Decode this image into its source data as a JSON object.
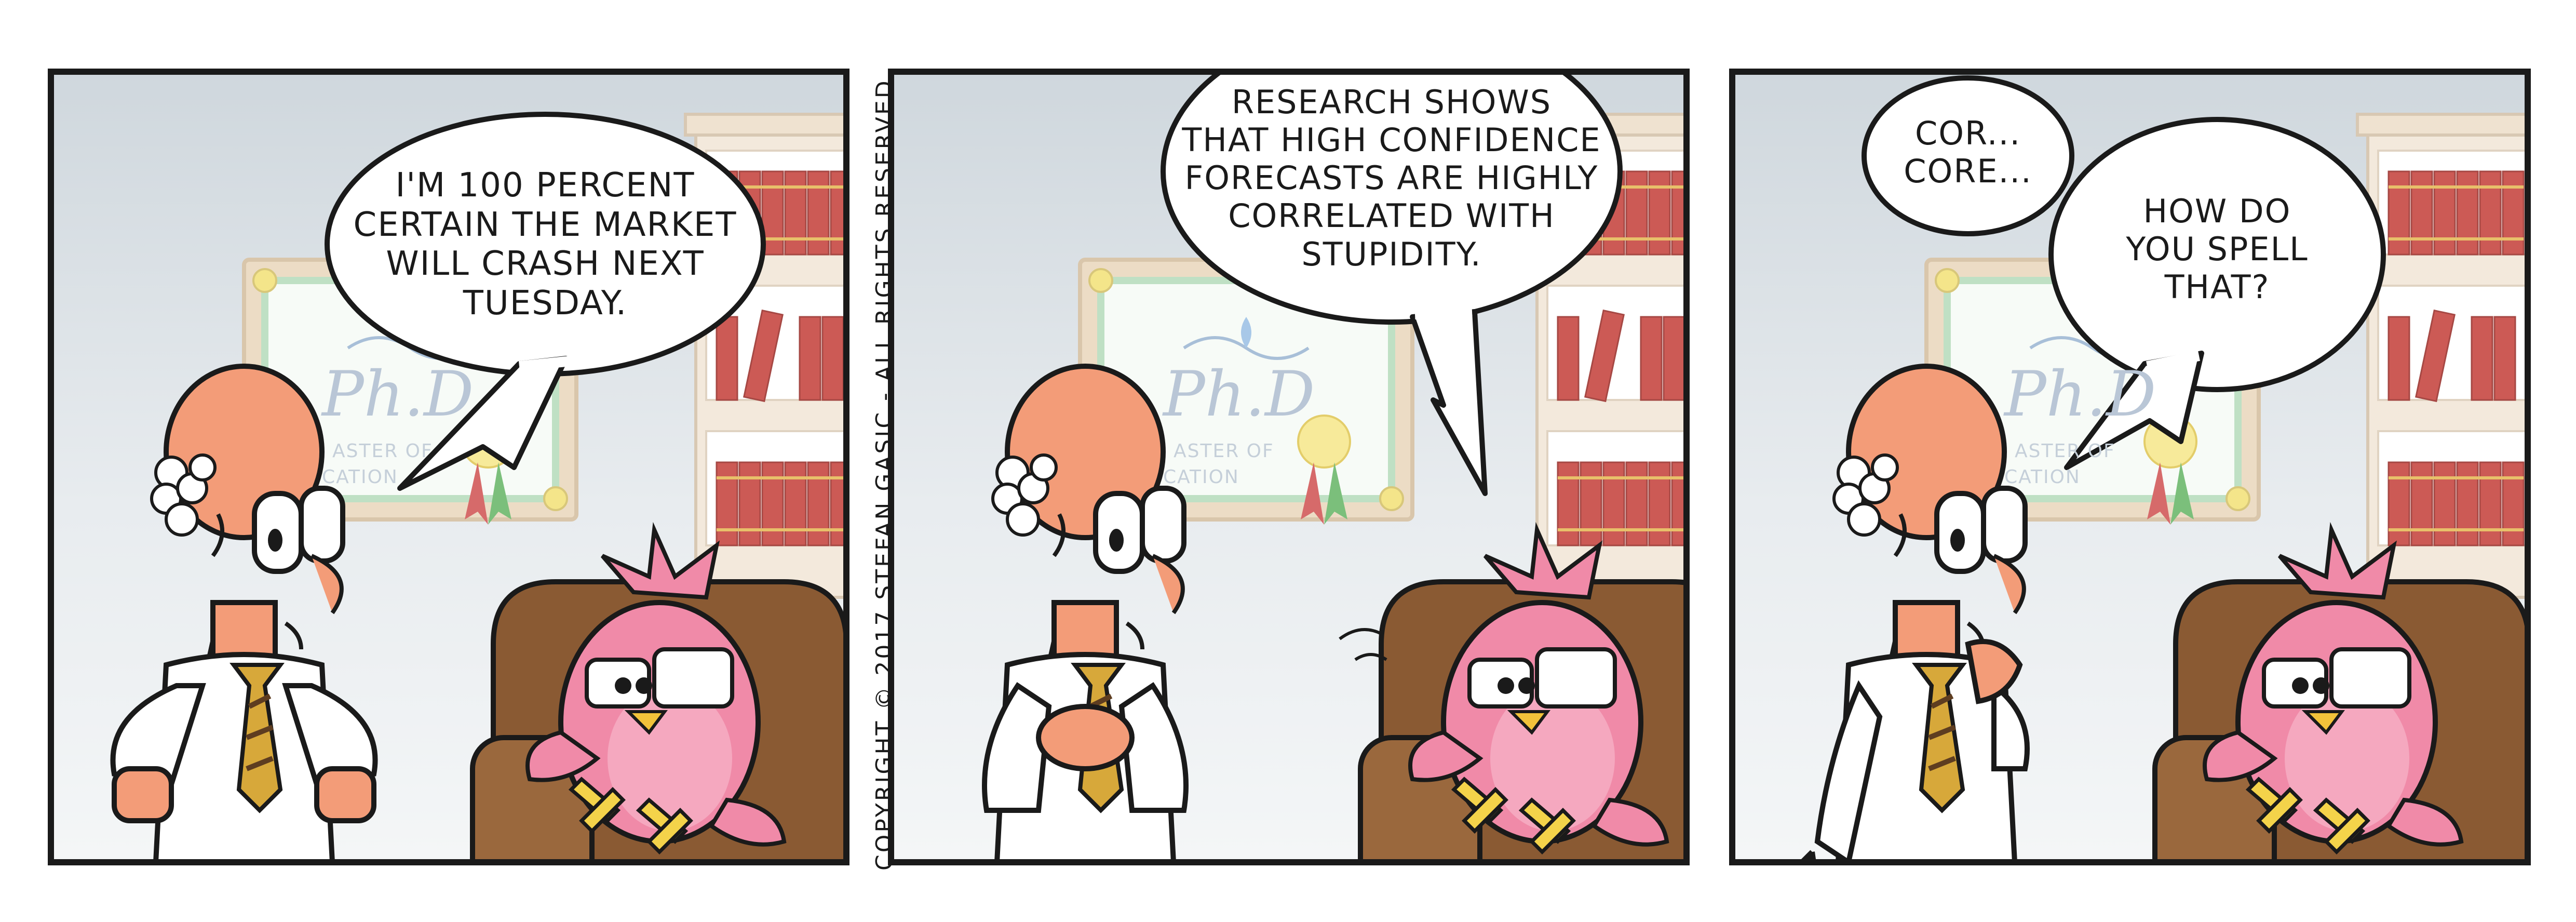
{
  "panels": [
    {
      "bubbles": [
        {
          "text": "I'M 100 PERCENT\nCERTAIN THE MARKET\nWILL CRASH NEXT\nTUESDAY."
        }
      ]
    },
    {
      "bubbles": [
        {
          "text": "RESEARCH SHOWS\nTHAT HIGH CONFIDENCE\nFORECASTS ARE HIGHLY\nCORRELATED WITH\nSTUPIDITY."
        }
      ]
    },
    {
      "bubbles": [
        {
          "text": "COR...\nCORE..."
        },
        {
          "text": "HOW DO\nYOU SPELL\nTHAT?"
        }
      ]
    }
  ],
  "diploma": {
    "degree": "Ph.D",
    "subtitle_left": "ASTER OF",
    "subtitle_right": "CATION"
  },
  "copyright": "COPYRIGHT © 2017 STEFAN GASIC - ALL RIGHTS RESERVED",
  "colors": {
    "wall": "#dde3e8",
    "shelf": "#f1e6d8",
    "book_red": "#c0392b",
    "chair": "#8a5a33",
    "bird": "#f08aa8",
    "skin": "#f39c78",
    "diploma_frame": "#efdcc4"
  }
}
